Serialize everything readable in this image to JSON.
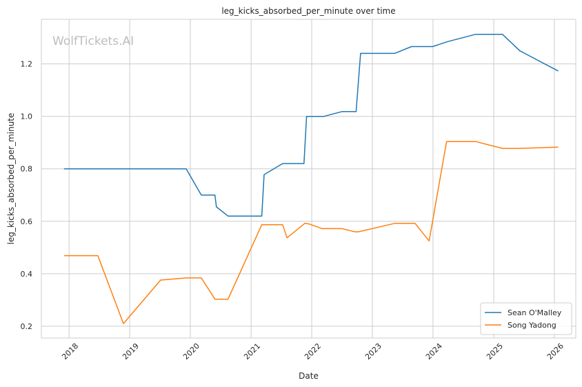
{
  "chart_data": {
    "type": "line",
    "title": "leg_kicks_absorbed_per_minute over time",
    "xlabel": "Date",
    "ylabel": "leg_kicks_absorbed_per_minute",
    "watermark": "WolfTickets.AI",
    "x_ticks": [
      "2018",
      "2019",
      "2020",
      "2021",
      "2022",
      "2023",
      "2024",
      "2025",
      "2026"
    ],
    "y_ticks": [
      "0.2",
      "0.4",
      "0.6",
      "0.8",
      "1.0",
      "1.2"
    ],
    "xlim": [
      "2017-07-18",
      "2026-05-10"
    ],
    "ylim": [
      0.155,
      1.37
    ],
    "grid": true,
    "legend_position": "bottom-right",
    "series": [
      {
        "name": "Sean O'Malley",
        "color": "#1f77b4",
        "points": [
          [
            "2017-12-01",
            0.8
          ],
          [
            "2018-06-01",
            0.8
          ],
          [
            "2019-06-01",
            0.8
          ],
          [
            "2019-12-07",
            0.8
          ],
          [
            "2020-03-07",
            0.7
          ],
          [
            "2020-05-28",
            0.7
          ],
          [
            "2020-06-06",
            0.655
          ],
          [
            "2020-08-15",
            0.62
          ],
          [
            "2021-03-06",
            0.62
          ],
          [
            "2021-03-20",
            0.778
          ],
          [
            "2021-07-10",
            0.82
          ],
          [
            "2021-11-15",
            0.82
          ],
          [
            "2021-12-01",
            1.0
          ],
          [
            "2022-03-15",
            1.0
          ],
          [
            "2022-07-01",
            1.018
          ],
          [
            "2022-09-25",
            1.018
          ],
          [
            "2022-10-22",
            1.24
          ],
          [
            "2023-05-15",
            1.24
          ],
          [
            "2023-08-25",
            1.266
          ],
          [
            "2023-12-30",
            1.266
          ],
          [
            "2024-03-30",
            1.285
          ],
          [
            "2024-09-14",
            1.313
          ],
          [
            "2025-02-22",
            1.313
          ],
          [
            "2025-06-07",
            1.25
          ],
          [
            "2026-01-24",
            1.173
          ]
        ]
      },
      {
        "name": "Song Yadong",
        "color": "#ff7f0e",
        "points": [
          [
            "2017-12-01",
            0.469
          ],
          [
            "2018-06-23",
            0.469
          ],
          [
            "2018-11-24",
            0.21
          ],
          [
            "2019-07-06",
            0.376
          ],
          [
            "2019-12-07",
            0.384
          ],
          [
            "2020-03-07",
            0.384
          ],
          [
            "2020-05-28",
            0.303
          ],
          [
            "2020-08-15",
            0.303
          ],
          [
            "2021-03-06",
            0.587
          ],
          [
            "2021-07-10",
            0.587
          ],
          [
            "2021-08-05",
            0.537
          ],
          [
            "2021-11-20",
            0.592
          ],
          [
            "2021-12-15",
            0.59
          ],
          [
            "2022-03-05",
            0.572
          ],
          [
            "2022-07-01",
            0.572
          ],
          [
            "2022-09-17",
            0.56
          ],
          [
            "2022-10-10",
            0.56
          ],
          [
            "2023-05-15",
            0.592
          ],
          [
            "2023-09-15",
            0.592
          ],
          [
            "2023-12-09",
            0.525
          ],
          [
            "2024-03-23",
            0.904
          ],
          [
            "2024-09-14",
            0.904
          ],
          [
            "2025-02-22",
            0.878
          ],
          [
            "2025-06-07",
            0.878
          ],
          [
            "2026-01-24",
            0.883
          ]
        ]
      }
    ]
  }
}
